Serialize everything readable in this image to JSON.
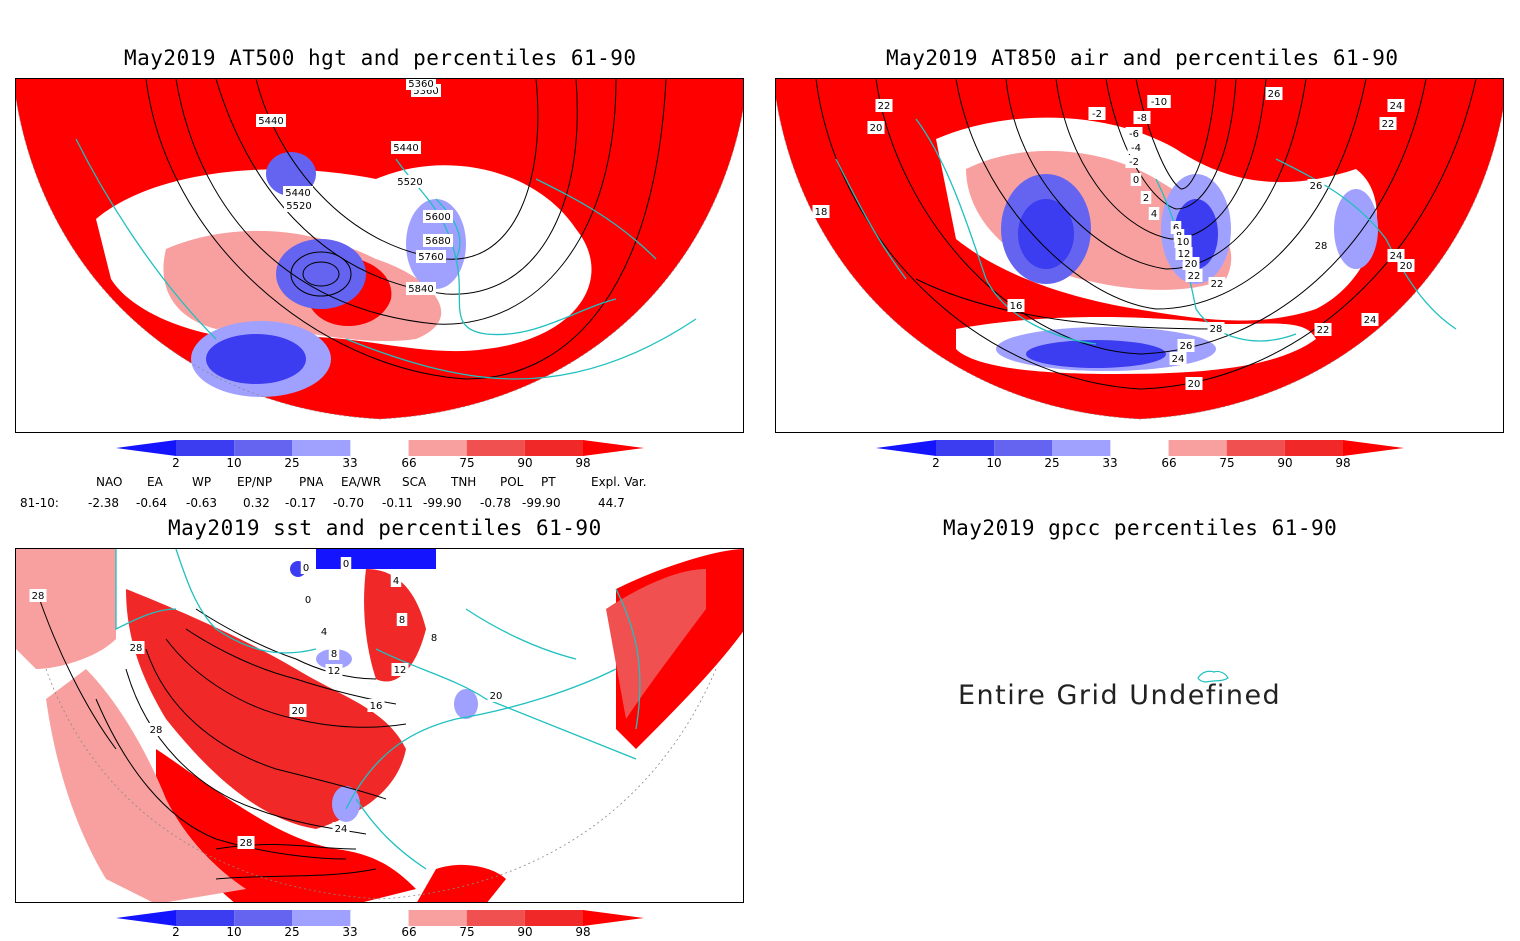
{
  "panels": {
    "hgt500": {
      "title": "May2019 AT500 hgt and percentiles 61-90",
      "contour_labels": [
        "5360",
        "5360",
        "5440",
        "5440",
        "5440",
        "5520",
        "5520",
        "5600",
        "5680",
        "5760",
        "5840"
      ]
    },
    "air850": {
      "title": "May2019 AT850 air and percentiles 61-90",
      "contour_labels": [
        "22",
        "20",
        "18",
        "16",
        "-2",
        "-10",
        "-8",
        "-6",
        "-4",
        "-2",
        "0",
        "2",
        "4",
        "6",
        "8",
        "10",
        "12",
        "20",
        "22",
        "26",
        "26",
        "24",
        "22",
        "28",
        "22",
        "24",
        "24",
        "20",
        "26",
        "24",
        "20",
        "28",
        "22"
      ]
    },
    "sst": {
      "title": "May2019 sst and percentiles 61-90",
      "contour_labels": [
        "28",
        "28",
        "28",
        "0",
        "0",
        "0",
        "4",
        "4",
        "8",
        "8",
        "12",
        "12",
        "16",
        "20",
        "24",
        "28",
        "8",
        "20"
      ]
    },
    "gpcc": {
      "title": "May2019 gpcc percentiles 61-90",
      "message": "Entire Grid Undefined"
    }
  },
  "colorbar": {
    "labels": [
      "2",
      "10",
      "25",
      "33",
      "66",
      "75",
      "90",
      "98"
    ],
    "colors": [
      "#1414ff",
      "#3c3cf0",
      "#6464f0",
      "#a0a0ff",
      "#ffffff",
      "#f8a0a0",
      "#f05050",
      "#f02828",
      "#ff0000"
    ]
  },
  "teleconnections": {
    "row_label": "81-10:",
    "indices": [
      {
        "name": "NAO",
        "value": "-2.38"
      },
      {
        "name": "EA",
        "value": "-0.64"
      },
      {
        "name": "WP",
        "value": "-0.63"
      },
      {
        "name": "EP/NP",
        "value": "0.32"
      },
      {
        "name": "PNA",
        "value": "-0.17"
      },
      {
        "name": "EA/WR",
        "value": "-0.70"
      },
      {
        "name": "SCA",
        "value": "-0.11"
      },
      {
        "name": "TNH",
        "value": "-99.90"
      },
      {
        "name": "POL",
        "value": "-0.78"
      },
      {
        "name": "PT",
        "value": "-99.90"
      },
      {
        "name": "Expl. Var.",
        "value": "44.7"
      }
    ]
  }
}
